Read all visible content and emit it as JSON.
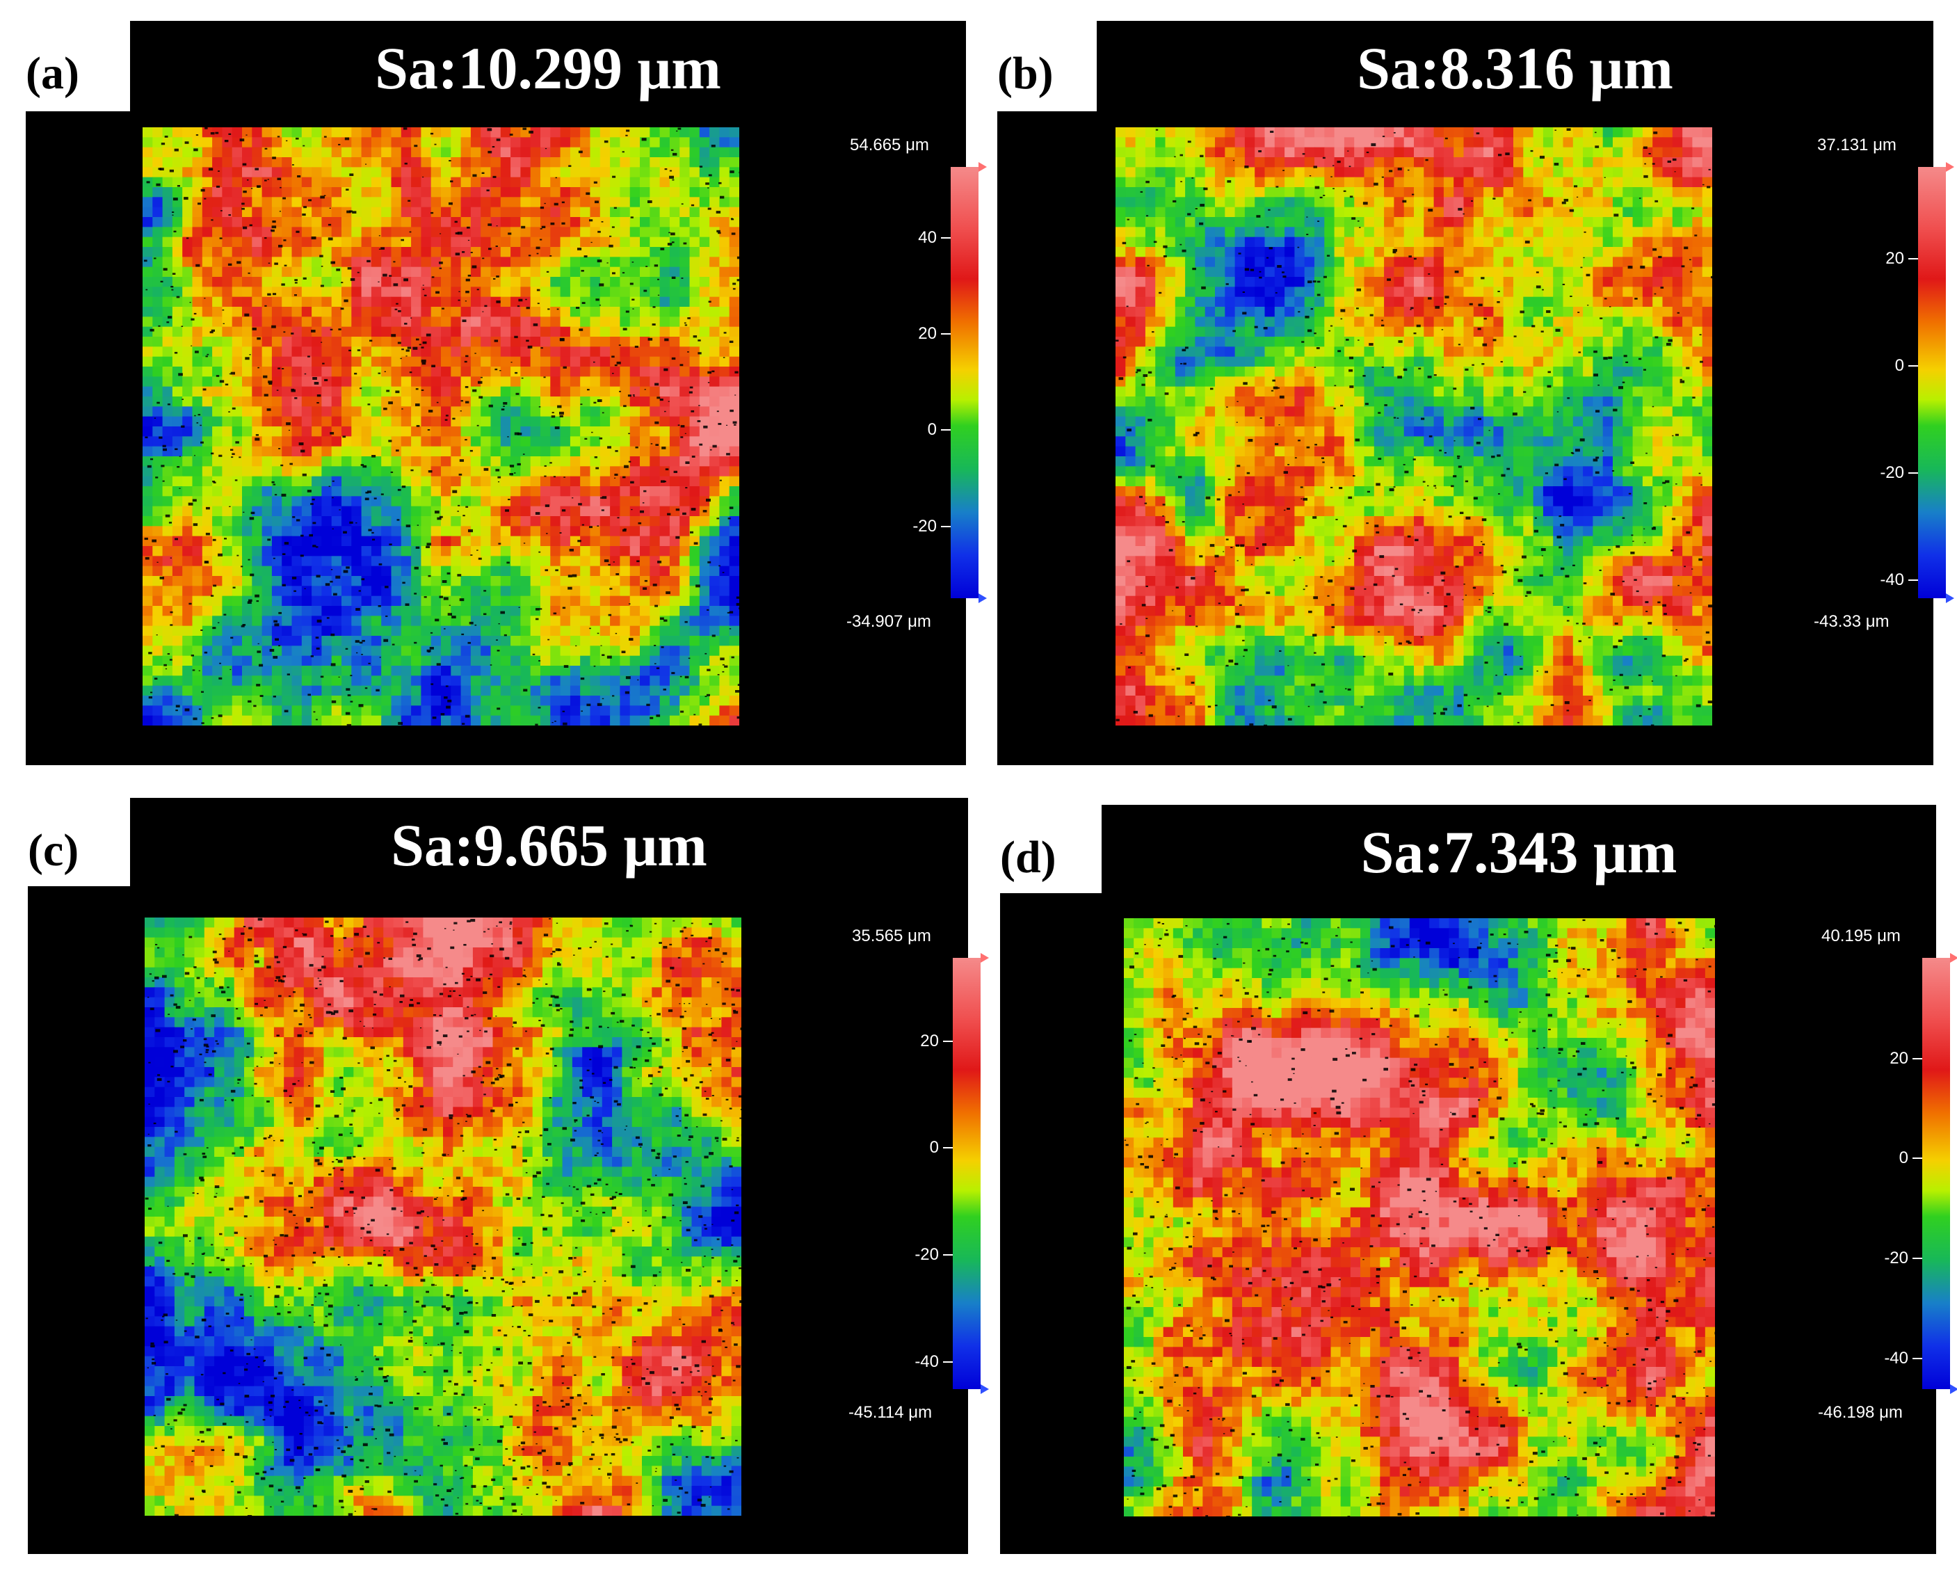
{
  "panels": [
    {
      "id": "a",
      "letter": "(a)",
      "title": "Sa:10.299 μm",
      "scale": {
        "max_label": "54.665 μm",
        "min_label": "-34.907 μm",
        "max": 54.665,
        "min": -34.907,
        "ticks": [
          "40",
          "20",
          "0",
          "-20"
        ]
      }
    },
    {
      "id": "b",
      "letter": "(b)",
      "title": "Sa:8.316 μm",
      "scale": {
        "max_label": "37.131 μm",
        "min_label": "-43.33 μm",
        "max": 37.131,
        "min": -43.33,
        "ticks": [
          "20",
          "0",
          "-20",
          "-40"
        ]
      }
    },
    {
      "id": "c",
      "letter": "(c)",
      "title": "Sa:9.665 μm",
      "scale": {
        "max_label": "35.565 μm",
        "min_label": "-45.114 μm",
        "max": 35.565,
        "min": -45.114,
        "ticks": [
          "20",
          "0",
          "-20",
          "-40"
        ]
      }
    },
    {
      "id": "d",
      "letter": "(d)",
      "title": "Sa:7.343 μm",
      "scale": {
        "max_label": "40.195 μm",
        "min_label": "-46.198 μm",
        "max": 40.195,
        "min": -46.198,
        "ticks": [
          "20",
          "0",
          "-20",
          "-40"
        ]
      }
    }
  ],
  "colormap": [
    "#0000d8",
    "#1030e8",
    "#1880c8",
    "#18b858",
    "#30d020",
    "#b8f000",
    "#f5d000",
    "#f07000",
    "#e01818",
    "#f05050",
    "#f58a8a"
  ]
}
